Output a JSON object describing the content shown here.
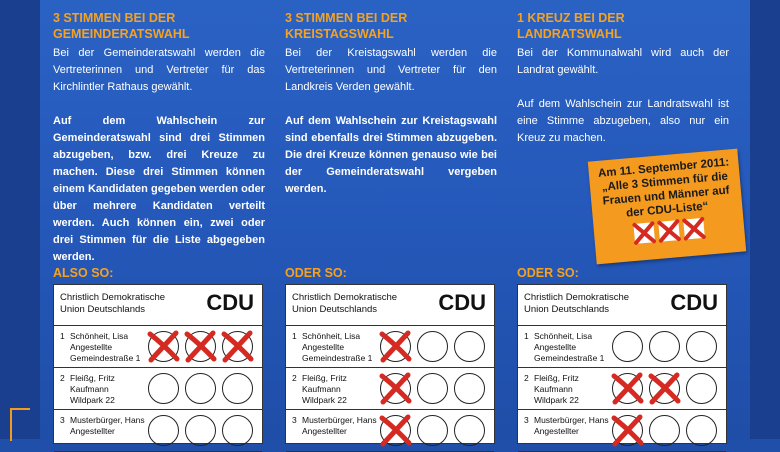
{
  "columns": [
    {
      "heading": "3 STIMMEN BEI DER GEMEINDERATSWAHL",
      "text": "Bei der Gemeinderatswahl werden die Vertreterinnen und Vertreter für das Kirchlintler Rathaus gewählt.",
      "bold_text": "Auf dem Wahlschein zur Gemeinderatswahl sind drei Stimmen abzugeben, bzw. drei Kreuze zu machen. Diese drei Stimmen können einem Kandidaten gegeben werden oder über mehrere Kandidaten verteilt werden. Auch können ein, zwei oder drei Stimmen für die Liste abgegeben werden."
    },
    {
      "heading": "3 STIMMEN BEI DER KREISTAGSWAHL",
      "text": "Bei der Kreistagswahl werden die Vertreterinnen und Vertreter für den Landkreis Verden gewählt.",
      "bold_text": "Auf dem Wahlschein zur Kreistagswahl sind ebenfalls drei Stimmen abzugeben. Die drei Kreuze können genauso wie bei der Gemeinderatswahl vergeben werden."
    },
    {
      "heading": "1 KREUZ BEI DER LANDRATSWAHL",
      "text": "Bei der Kommunalwahl wird auch der Landrat gewählt.",
      "text2": "Auf dem Wahlschein zur Landratswahl ist eine Stimme abzugeben, also nur ein Kreuz zu machen."
    }
  ],
  "callout": {
    "text": "Am 11. September 2011:\n„Alle 3 Stimmen für die Frauen und Männer auf der CDU-Liste“",
    "crosses": 3
  },
  "ballots": [
    {
      "label": "ALSO SO:",
      "marks": [
        [
          true,
          true,
          true
        ],
        [
          false,
          false,
          false
        ],
        [
          false,
          false,
          false
        ]
      ]
    },
    {
      "label": "ODER SO:",
      "marks": [
        [
          true,
          false,
          false
        ],
        [
          true,
          false,
          false
        ],
        [
          true,
          false,
          false
        ]
      ]
    },
    {
      "label": "ODER SO:",
      "marks": [
        [
          false,
          false,
          false
        ],
        [
          true,
          true,
          false
        ],
        [
          true,
          false,
          false
        ]
      ]
    }
  ],
  "ballot_common": {
    "party_name": "Christlich Demokratische\nUnion Deutschlands",
    "party_abbr": "CDU",
    "candidates": [
      {
        "num": "1",
        "name": "Schönheit, Lisa",
        "line2": "Angestellte",
        "line3": "Gemeindestraße 1"
      },
      {
        "num": "2",
        "name": "Fleißg, Fritz",
        "line2": "Kaufmann",
        "line3": "Wildpark 22"
      },
      {
        "num": "3",
        "name": "Musterbürger, Hans",
        "line2": "Angestellter",
        "line3": ""
      }
    ]
  },
  "colors": {
    "accent": "#f39a1f",
    "heading": "#f6a21e",
    "background": "#2457b8",
    "cross": "#d42a22"
  }
}
